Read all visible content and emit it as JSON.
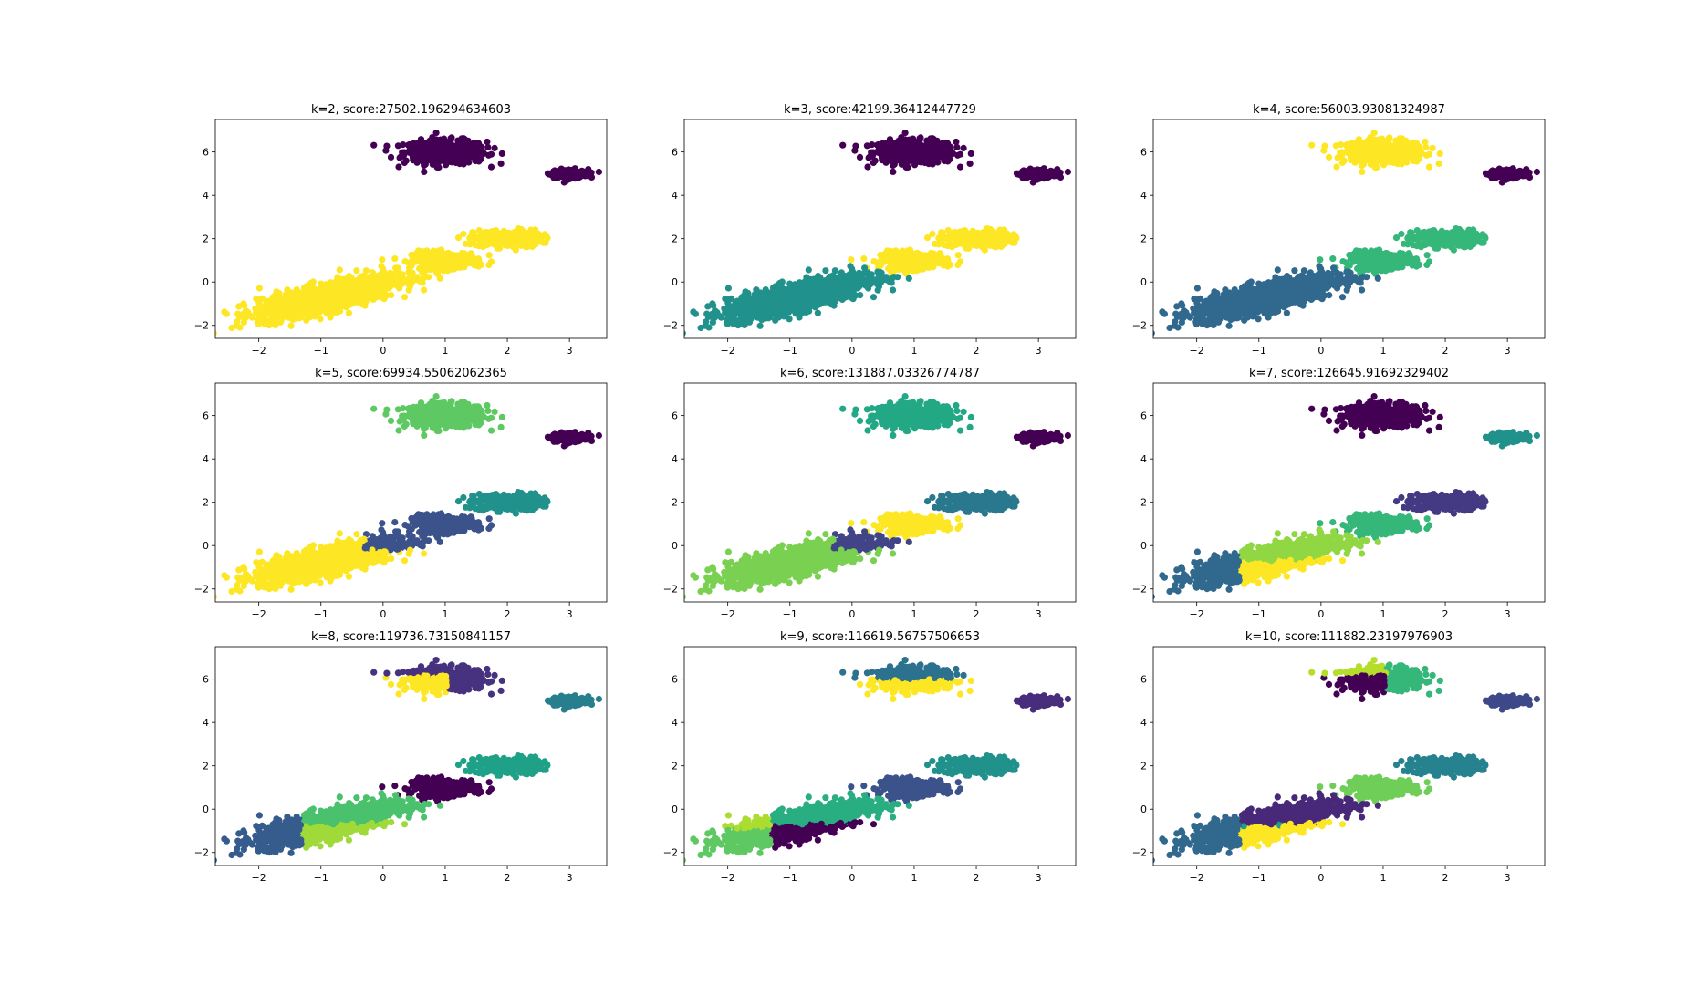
{
  "figure": {
    "background": "#ffffff"
  },
  "palette": {
    "viridis": [
      "#440154",
      "#482878",
      "#3e4989",
      "#31688e",
      "#26828e",
      "#1f9e89",
      "#35b779",
      "#6ece58",
      "#b5de2b",
      "#fde725"
    ]
  },
  "blobs": [
    {
      "id": "A",
      "cx": 1.0,
      "cy": 6.0,
      "sx": 0.33,
      "sy": 0.27,
      "n": 480
    },
    {
      "id": "B",
      "cx": 3.0,
      "cy": 5.0,
      "sx": 0.15,
      "sy": 0.1,
      "n": 200
    },
    {
      "id": "C",
      "cx": 2.0,
      "cy": 2.0,
      "sx": 0.27,
      "sy": 0.2,
      "n": 260
    },
    {
      "id": "D",
      "cx": 1.0,
      "cy": 1.0,
      "sx": 0.27,
      "sy": 0.2,
      "n": 260
    },
    {
      "id": "E",
      "cx": -0.9,
      "cy": -0.7,
      "sx": 0.55,
      "sy": 0.42,
      "corr": 0.65,
      "n": 1400
    }
  ],
  "chart_data": [
    {
      "type": "scatter",
      "title": "k=2, score:27502.196294634603",
      "xlabel": "",
      "ylabel": "",
      "xlim": [
        -2.7,
        3.6
      ],
      "ylim": [
        -2.6,
        7.5
      ],
      "xticks": [
        -2,
        -1,
        0,
        1,
        2,
        3
      ],
      "yticks": [
        -2,
        0,
        2,
        4,
        6
      ],
      "clusters": [
        {
          "color": "#440154",
          "region": [
            "A",
            "B"
          ]
        },
        {
          "color": "#fde725",
          "region": [
            "C",
            "D",
            "E"
          ]
        }
      ]
    },
    {
      "type": "scatter",
      "title": "k=3, score:42199.36412447729",
      "xlabel": "",
      "ylabel": "",
      "xlim": [
        -2.7,
        3.6
      ],
      "ylim": [
        -2.6,
        7.5
      ],
      "xticks": [
        -2,
        -1,
        0,
        1,
        2,
        3
      ],
      "yticks": [
        -2,
        0,
        2,
        4,
        6
      ],
      "clusters": [
        {
          "color": "#440154",
          "region": [
            "A",
            "B"
          ]
        },
        {
          "color": "#21918c",
          "region": [
            "E"
          ]
        },
        {
          "color": "#fde725",
          "region": [
            "C",
            "D"
          ]
        }
      ]
    },
    {
      "type": "scatter",
      "title": "k=4, score:56003.93081324987",
      "xlabel": "",
      "ylabel": "",
      "xlim": [
        -2.7,
        3.6
      ],
      "ylim": [
        -2.6,
        7.5
      ],
      "xticks": [
        -2,
        -1,
        0,
        1,
        2,
        3
      ],
      "yticks": [
        -2,
        0,
        2,
        4,
        6
      ],
      "clusters": [
        {
          "color": "#440154",
          "region": [
            "B"
          ]
        },
        {
          "color": "#31688e",
          "region": [
            "E"
          ]
        },
        {
          "color": "#35b779",
          "region": [
            "C",
            "D"
          ]
        },
        {
          "color": "#fde725",
          "region": [
            "A"
          ]
        }
      ]
    },
    {
      "type": "scatter",
      "title": "k=5, score:69934.55062062365",
      "xlabel": "",
      "ylabel": "",
      "xlim": [
        -2.7,
        3.6
      ],
      "ylim": [
        -2.6,
        7.5
      ],
      "xticks": [
        -2,
        -1,
        0,
        1,
        2,
        3
      ],
      "yticks": [
        -2,
        0,
        2,
        4,
        6
      ],
      "clusters": [
        {
          "color": "#440154",
          "region": [
            "B"
          ]
        },
        {
          "color": "#3b528b",
          "region": [
            "D",
            "E-upper"
          ]
        },
        {
          "color": "#21918c",
          "region": [
            "C"
          ]
        },
        {
          "color": "#5ec962",
          "region": [
            "A"
          ]
        },
        {
          "color": "#fde725",
          "region": [
            "E-lower"
          ]
        }
      ]
    },
    {
      "type": "scatter",
      "title": "k=6, score:131887.03326774787",
      "xlabel": "",
      "ylabel": "",
      "xlim": [
        -2.7,
        3.6
      ],
      "ylim": [
        -2.6,
        7.5
      ],
      "xticks": [
        -2,
        -1,
        0,
        1,
        2,
        3
      ],
      "yticks": [
        -2,
        0,
        2,
        4,
        6
      ],
      "clusters": [
        {
          "color": "#440154",
          "region": [
            "B"
          ]
        },
        {
          "color": "#414487",
          "region": [
            "E-upper"
          ]
        },
        {
          "color": "#2a788e",
          "region": [
            "C"
          ]
        },
        {
          "color": "#22a884",
          "region": [
            "A"
          ]
        },
        {
          "color": "#7ad151",
          "region": [
            "E-lower"
          ]
        },
        {
          "color": "#fde725",
          "region": [
            "D"
          ]
        }
      ]
    },
    {
      "type": "scatter",
      "title": "k=7, score:126645.91692329402",
      "xlabel": "",
      "ylabel": "",
      "xlim": [
        -2.7,
        3.6
      ],
      "ylim": [
        -2.6,
        7.5
      ],
      "xticks": [
        -2,
        -1,
        0,
        1,
        2,
        3
      ],
      "yticks": [
        -2,
        0,
        2,
        4,
        6
      ],
      "clusters": [
        {
          "color": "#440154",
          "region": [
            "A"
          ]
        },
        {
          "color": "#443983",
          "region": [
            "C"
          ]
        },
        {
          "color": "#31688e",
          "region": [
            "E-left"
          ]
        },
        {
          "color": "#21918c",
          "region": [
            "B"
          ]
        },
        {
          "color": "#35b779",
          "region": [
            "D"
          ]
        },
        {
          "color": "#90d743",
          "region": [
            "E-upper-right"
          ]
        },
        {
          "color": "#fde725",
          "region": [
            "E-lower-right"
          ]
        }
      ]
    },
    {
      "type": "scatter",
      "title": "k=8, score:119736.73150841157",
      "xlabel": "",
      "ylabel": "",
      "xlim": [
        -2.7,
        3.6
      ],
      "ylim": [
        -2.6,
        7.5
      ],
      "xticks": [
        -2,
        -1,
        0,
        1,
        2,
        3
      ],
      "yticks": [
        -2,
        0,
        2,
        4,
        6
      ],
      "clusters": [
        {
          "color": "#440154",
          "region": [
            "D"
          ]
        },
        {
          "color": "#46327e",
          "region": [
            "A-right"
          ]
        },
        {
          "color": "#365c8d",
          "region": [
            "E-left"
          ]
        },
        {
          "color": "#277f8e",
          "region": [
            "B"
          ]
        },
        {
          "color": "#1fa187",
          "region": [
            "C"
          ]
        },
        {
          "color": "#4ac16d",
          "region": [
            "E-upper-right"
          ]
        },
        {
          "color": "#a0da39",
          "region": [
            "E-lower-right"
          ]
        },
        {
          "color": "#fde725",
          "region": [
            "A-left"
          ]
        }
      ]
    },
    {
      "type": "scatter",
      "title": "k=9, score:116619.56757506653",
      "xlabel": "",
      "ylabel": "",
      "xlim": [
        -2.7,
        3.6
      ],
      "ylim": [
        -2.6,
        7.5
      ],
      "xticks": [
        -2,
        -1,
        0,
        1,
        2,
        3
      ],
      "yticks": [
        -2,
        0,
        2,
        4,
        6
      ],
      "clusters": [
        {
          "color": "#440154",
          "region": [
            "E-lower-right"
          ]
        },
        {
          "color": "#472d7b",
          "region": [
            "B"
          ]
        },
        {
          "color": "#3b528b",
          "region": [
            "D"
          ]
        },
        {
          "color": "#2c728e",
          "region": [
            "A-upper"
          ]
        },
        {
          "color": "#21918c",
          "region": [
            "C"
          ]
        },
        {
          "color": "#28ae80",
          "region": [
            "E-upper-right"
          ]
        },
        {
          "color": "#5ec962",
          "region": [
            "E-lower-left"
          ]
        },
        {
          "color": "#addc30",
          "region": [
            "E-upper-left"
          ]
        },
        {
          "color": "#fde725",
          "region": [
            "A-lower"
          ]
        }
      ]
    },
    {
      "type": "scatter",
      "title": "k=10, score:111882.23197976903",
      "xlabel": "",
      "ylabel": "",
      "xlim": [
        -2.7,
        3.6
      ],
      "ylim": [
        -2.6,
        7.5
      ],
      "xticks": [
        -2,
        -1,
        0,
        1,
        2,
        3
      ],
      "yticks": [
        -2,
        0,
        2,
        4,
        6
      ],
      "clusters": [
        {
          "color": "#440154",
          "region": [
            "A-left"
          ]
        },
        {
          "color": "#482878",
          "region": [
            "E-upper-right"
          ]
        },
        {
          "color": "#3e4989",
          "region": [
            "B"
          ]
        },
        {
          "color": "#31688e",
          "region": [
            "E-left"
          ]
        },
        {
          "color": "#26828e",
          "region": [
            "C"
          ]
        },
        {
          "color": "#1f9e89",
          "region": [
            "E-middle"
          ]
        },
        {
          "color": "#35b779",
          "region": [
            "A-right"
          ]
        },
        {
          "color": "#6ece58",
          "region": [
            "D"
          ]
        },
        {
          "color": "#b5de2b",
          "region": [
            "A-upper"
          ]
        },
        {
          "color": "#fde725",
          "region": [
            "E-lower"
          ]
        }
      ]
    }
  ]
}
